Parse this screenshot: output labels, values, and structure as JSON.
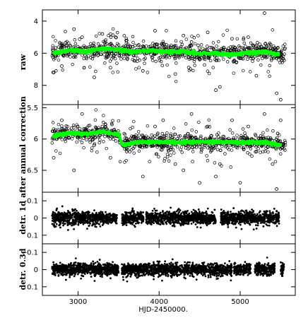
{
  "chart_data": [
    {
      "type": "scatter",
      "ylabel": "raw",
      "ylim": [
        3.3,
        9.2
      ],
      "inverted": true,
      "yticks": [
        4,
        6,
        8
      ],
      "ytick_labels": [
        "4",
        "6",
        "8"
      ],
      "series": [
        {
          "color": "#000000",
          "marker": "open-circle",
          "x": [
            2700,
            2800,
            2950,
            3050,
            3200,
            3300,
            3400,
            3600,
            3800,
            3950,
            4050,
            4200,
            4300,
            4400,
            4500,
            4600,
            4700,
            4750,
            4900,
            5000,
            5100,
            5200,
            5300,
            5400,
            5450,
            5500
          ],
          "y": [
            7.2,
            6.8,
            4.5,
            5.0,
            7.5,
            4.8,
            6.9,
            5.2,
            7.1,
            4.6,
            5.4,
            7.3,
            4.9,
            5.3,
            6.4,
            4.7,
            8.3,
            8.1,
            5.1,
            6.3,
            5.0,
            7.4,
            3.5,
            6.2,
            8.5,
            8.9
          ]
        },
        {
          "color": "#00ff00",
          "marker": "filled-circle",
          "x": [
            2700,
            2900,
            3100,
            3300,
            3500,
            3700,
            3900,
            4100,
            4300,
            4500,
            4700,
            4900,
            5100,
            5300,
            5500
          ],
          "y": [
            6.0,
            5.8,
            5.9,
            5.7,
            5.8,
            5.9,
            5.8,
            5.9,
            5.9,
            6.0,
            6.0,
            6.1,
            6.0,
            5.9,
            6.1
          ]
        }
      ]
    },
    {
      "type": "scatter",
      "ylabel": "after annual correction",
      "ylim": [
        5.45,
        6.85
      ],
      "inverted": true,
      "yticks": [
        5.5,
        6,
        6.5
      ],
      "ytick_labels": [
        "5.5",
        "6",
        "6.5"
      ],
      "series": [
        {
          "color": "#000000",
          "marker": "open-circle",
          "x": [
            2700,
            2800,
            2950,
            3050,
            3200,
            3300,
            3400,
            3600,
            3800,
            3950,
            4050,
            4200,
            4300,
            4400,
            4500,
            4600,
            4700,
            4750,
            4900,
            5000,
            5100,
            5200,
            5300,
            5400,
            5450,
            5500
          ],
          "y": [
            6.3,
            5.7,
            6.5,
            5.6,
            6.1,
            5.8,
            6.3,
            6.2,
            6.6,
            5.8,
            5.7,
            6.4,
            6.5,
            5.6,
            6.7,
            5.8,
            6.6,
            6.4,
            5.7,
            6.7,
            5.8,
            6.2,
            5.6,
            6.4,
            6.8,
            5.7
          ]
        },
        {
          "color": "#00ff00",
          "marker": "filled-circle",
          "x": [
            2700,
            2900,
            3100,
            3300,
            3500,
            3550,
            3700,
            3900,
            4100,
            4300,
            4500,
            4700,
            4900,
            5100,
            5300,
            5500
          ],
          "y": [
            5.95,
            5.9,
            5.92,
            5.88,
            5.92,
            6.1,
            6.05,
            6.05,
            6.05,
            6.05,
            6.05,
            6.05,
            6.05,
            6.05,
            6.05,
            6.1
          ]
        }
      ]
    },
    {
      "type": "scatter",
      "ylabel": "detr. 1d",
      "ylim": [
        -0.15,
        0.15
      ],
      "inverted": true,
      "yticks": [
        -0.1,
        0,
        0.1
      ],
      "ytick_labels": [
        "-0.1",
        "0",
        "0.1"
      ],
      "segments": [
        [
          2680,
          3480
        ],
        [
          3540,
          3810
        ],
        [
          3840,
          4700
        ],
        [
          4760,
          5480
        ]
      ],
      "spread": 0.055
    },
    {
      "type": "scatter",
      "ylabel": "detr. 0.3d",
      "ylim": [
        -0.15,
        0.15
      ],
      "inverted": true,
      "yticks": [
        -0.1,
        0,
        0.1
      ],
      "ytick_labels": [
        "-0.1",
        "0",
        "0.1"
      ],
      "segments": [
        [
          2680,
          3500
        ],
        [
          3540,
          4900
        ],
        [
          4920,
          5130
        ],
        [
          5180,
          5430
        ],
        [
          5500,
          5540
        ]
      ],
      "spread": 0.05
    }
  ],
  "xaxis": {
    "label": "HJD-2450000.",
    "xlim": [
      2560,
      5680
    ],
    "ticks": [
      3000,
      4000,
      5000
    ],
    "tick_labels": [
      "3000",
      "4000",
      "5000"
    ]
  }
}
